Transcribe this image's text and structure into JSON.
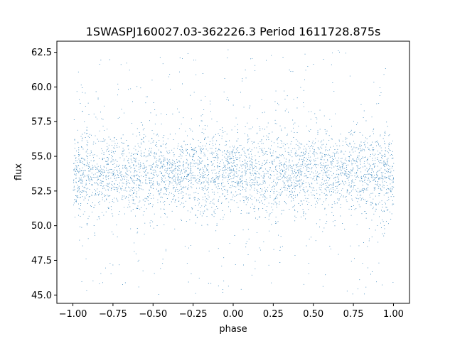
{
  "chart_data": {
    "type": "scatter",
    "title": "1SWASPJ160027.03-362226.3 Period 1611728.875s",
    "xlabel": "phase",
    "ylabel": "flux",
    "xlim": [
      -1.1,
      1.1
    ],
    "ylim": [
      44.4,
      63.3
    ],
    "x_ticks": [
      -1.0,
      -0.75,
      -0.5,
      -0.25,
      0.0,
      0.25,
      0.5,
      0.75,
      1.0
    ],
    "x_tick_labels": [
      "−1.00",
      "−0.75",
      "−0.50",
      "−0.25",
      "0.00",
      "0.25",
      "0.50",
      "0.75",
      "1.00"
    ],
    "y_ticks": [
      45.0,
      47.5,
      50.0,
      52.5,
      55.0,
      57.5,
      60.0,
      62.5
    ],
    "y_tick_labels": [
      "45.0",
      "47.5",
      "50.0",
      "52.5",
      "55.0",
      "57.5",
      "60.0",
      "62.5"
    ],
    "grid": false,
    "point_color": "#1f77b4",
    "phase_range": [
      -1.0,
      1.0
    ],
    "flux_median": 53.8,
    "flux_core_spread": 1.4,
    "flux_range": [
      45.0,
      62.7
    ]
  }
}
